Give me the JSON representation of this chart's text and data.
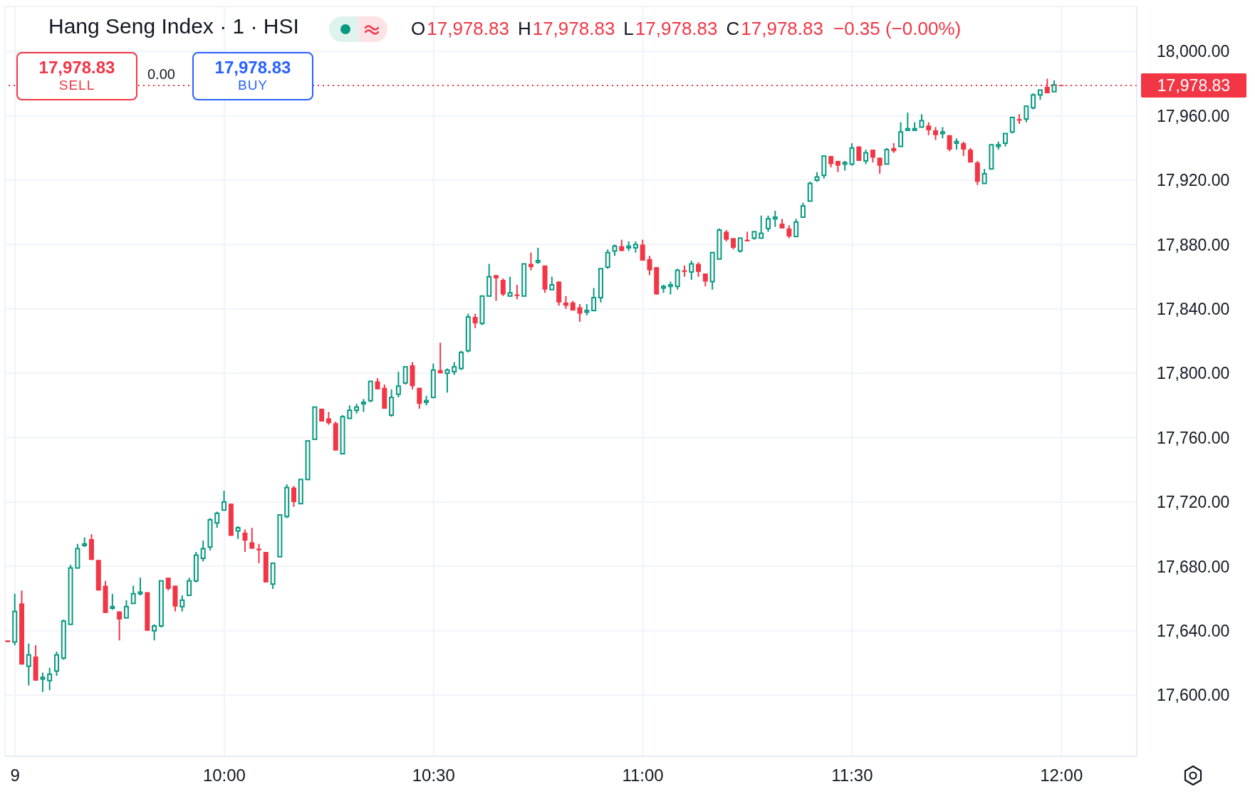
{
  "chart_data": {
    "type": "candlestick",
    "title": "Hang Seng Index · 1 · HSI",
    "annotations": [
      "O",
      "17,978.83",
      "H",
      "17,978.83",
      "L",
      "17,978.83",
      "C",
      "17,978.83",
      "−0.35 (−0.00%)",
      "17,978.83",
      "SELL",
      "0.00",
      "17,978.83",
      "BUY"
    ],
    "x": [
      9.4833,
      9.5,
      9.5167,
      9.5333,
      9.55,
      9.5667,
      9.5833,
      9.6,
      9.6167,
      9.6333,
      9.65,
      9.6667,
      9.6833,
      9.7,
      9.7167,
      9.7333,
      9.75,
      9.7667,
      9.7833,
      9.8,
      9.8167,
      9.8333,
      9.85,
      9.8667,
      9.8833,
      9.9,
      9.9167,
      9.9333,
      9.95,
      9.9667,
      9.9833,
      10,
      10.0167,
      10.0333,
      10.05,
      10.0667,
      10.0833,
      10.1,
      10.1167,
      10.1333,
      10.15,
      10.1667,
      10.1833,
      10.2,
      10.2167,
      10.2333,
      10.25,
      10.2667,
      10.2833,
      10.3,
      10.3167,
      10.3333,
      10.35,
      10.3667,
      10.3833,
      10.4,
      10.4167,
      10.4333,
      10.45,
      10.4667,
      10.4833,
      10.5,
      10.5167,
      10.5333,
      10.55,
      10.5667,
      10.5833,
      10.6,
      10.6167,
      10.6333,
      10.65,
      10.6667,
      10.6833,
      10.7,
      10.7167,
      10.7333,
      10.75,
      10.7667,
      10.7833,
      10.8,
      10.8167,
      10.8333,
      10.85,
      10.8667,
      10.8833,
      10.9,
      10.9167,
      10.9333,
      10.95,
      10.9667,
      10.9833,
      11,
      11.0167,
      11.0333,
      11.05,
      11.0667,
      11.0833,
      11.1,
      11.1167,
      11.1333,
      11.15,
      11.1667,
      11.1833,
      11.2,
      11.2167,
      11.2333,
      11.25,
      11.2667,
      11.2833,
      11.3,
      11.3167,
      11.3333,
      11.35,
      11.3667,
      11.3833,
      11.4,
      11.4167,
      11.4333,
      11.45,
      11.4667,
      11.4833,
      11.5,
      11.5167,
      11.5333,
      11.55,
      11.5667,
      11.5833,
      11.6,
      11.6167,
      11.6333,
      11.65,
      11.6667,
      11.6833,
      11.7,
      11.7167,
      11.7333,
      11.75,
      11.7667,
      11.7833,
      11.8,
      11.8167,
      11.8333,
      11.85,
      11.8667,
      11.8833,
      11.9,
      11.9167,
      11.9333,
      11.95,
      11.9667,
      11.9833,
      12
    ],
    "ohlc": [
      [
        17634,
        17634,
        17633,
        17633
      ],
      [
        17633,
        17663,
        17631,
        17652
      ],
      [
        17657,
        17665,
        17619,
        17619
      ],
      [
        17618,
        17632,
        17606,
        17625
      ],
      [
        17624,
        17631,
        17609,
        17609
      ],
      [
        17610,
        17614,
        17602,
        17611
      ],
      [
        17609,
        17617,
        17603,
        17613
      ],
      [
        17615,
        17627,
        17612,
        17625
      ],
      [
        17623,
        17647,
        17622,
        17646
      ],
      [
        17644,
        17681,
        17644,
        17679
      ],
      [
        17679,
        17694,
        17679,
        17691
      ],
      [
        17693,
        17698,
        17692,
        17694
      ],
      [
        17697,
        17700,
        17684,
        17684
      ],
      [
        17684,
        17684,
        17665,
        17665
      ],
      [
        17668,
        17671,
        17651,
        17651
      ],
      [
        17654,
        17663,
        17653,
        17655
      ],
      [
        17652,
        17652,
        17634,
        17647
      ],
      [
        17648,
        17659,
        17648,
        17655
      ],
      [
        17657,
        17668,
        17657,
        17663
      ],
      [
        17663,
        17673,
        17662,
        17664
      ],
      [
        17664,
        17664,
        17640,
        17640
      ],
      [
        17640,
        17644,
        17634,
        17643
      ],
      [
        17643,
        17671,
        17642,
        17671
      ],
      [
        17673,
        17673,
        17665,
        17666
      ],
      [
        17668,
        17668,
        17652,
        17655
      ],
      [
        17655,
        17662,
        17652,
        17659
      ],
      [
        17662,
        17673,
        17662,
        17671
      ],
      [
        17671,
        17689,
        17670,
        17687
      ],
      [
        17685,
        17696,
        17683,
        17691
      ],
      [
        17692,
        17710,
        17690,
        17709
      ],
      [
        17707,
        17714,
        17704,
        17713
      ],
      [
        17715,
        17727,
        17715,
        17720
      ],
      [
        17719,
        17719,
        17699,
        17699
      ],
      [
        17702,
        17705,
        17697,
        17704
      ],
      [
        17701,
        17703,
        17689,
        17696
      ],
      [
        17695,
        17704,
        17691,
        17691
      ],
      [
        17691,
        17694,
        17682,
        17690
      ],
      [
        17689,
        17689,
        17670,
        17670
      ],
      [
        17669,
        17682,
        17666,
        17682
      ],
      [
        17686,
        17712,
        17686,
        17712
      ],
      [
        17711,
        17731,
        17710,
        17729
      ],
      [
        17729,
        17730,
        17717,
        17720
      ],
      [
        17719,
        17734,
        17719,
        17734
      ],
      [
        17734,
        17758,
        17734,
        17758
      ],
      [
        17759,
        17779,
        17759,
        17779
      ],
      [
        17778,
        17778,
        17770,
        17770
      ],
      [
        17772,
        17776,
        17768,
        17769
      ],
      [
        17769,
        17770,
        17752,
        17752
      ],
      [
        17750,
        17774,
        17750,
        17773
      ],
      [
        17772,
        17780,
        17772,
        17777
      ],
      [
        17777,
        17781,
        17775,
        17779
      ],
      [
        17781,
        17784,
        17776,
        17782
      ],
      [
        17783,
        17795,
        17782,
        17795
      ],
      [
        17795,
        17797,
        17790,
        17790
      ],
      [
        17791,
        17793,
        17778,
        17778
      ],
      [
        17774,
        17790,
        17773,
        17785
      ],
      [
        17787,
        17801,
        17785,
        17792
      ],
      [
        17794,
        17804,
        17793,
        17804
      ],
      [
        17805,
        17807,
        17790,
        17792
      ],
      [
        17791,
        17791,
        17778,
        17781
      ],
      [
        17782,
        17786,
        17780,
        17783
      ],
      [
        17785,
        17806,
        17785,
        17802
      ],
      [
        17802,
        17819,
        17800,
        17800
      ],
      [
        17800,
        17803,
        17788,
        17802
      ],
      [
        17801,
        17807,
        17799,
        17804
      ],
      [
        17803,
        17814,
        17802,
        17813
      ],
      [
        17814,
        17837,
        17813,
        17835
      ],
      [
        17835,
        17837,
        17828,
        17831
      ],
      [
        17831,
        17848,
        17830,
        17848
      ],
      [
        17848,
        17868,
        17848,
        17860
      ],
      [
        17861,
        17861,
        17845,
        17859
      ],
      [
        17858,
        17859,
        17848,
        17849
      ],
      [
        17848,
        17860,
        17848,
        17850
      ],
      [
        17849,
        17855,
        17846,
        17848
      ],
      [
        17848,
        17868,
        17848,
        17868
      ],
      [
        17868,
        17875,
        17864,
        17866
      ],
      [
        17869,
        17878,
        17868,
        17870
      ],
      [
        17867,
        17867,
        17850,
        17852
      ],
      [
        17852,
        17860,
        17852,
        17855
      ],
      [
        17857,
        17857,
        17842,
        17844
      ],
      [
        17844,
        17848,
        17840,
        17842
      ],
      [
        17844,
        17845,
        17839,
        17839
      ],
      [
        17841,
        17843,
        17832,
        17837
      ],
      [
        17838,
        17843,
        17836,
        17839
      ],
      [
        17839,
        17853,
        17839,
        17847
      ],
      [
        17847,
        17865,
        17844,
        17865
      ],
      [
        17866,
        17877,
        17865,
        17875
      ],
      [
        17876,
        17880,
        17873,
        17879
      ],
      [
        17879,
        17883,
        17876,
        17876
      ],
      [
        17878,
        17882,
        17876,
        17879
      ],
      [
        17878,
        17882,
        17875,
        17880
      ],
      [
        17880,
        17883,
        17870,
        17870
      ],
      [
        17871,
        17873,
        17861,
        17864
      ],
      [
        17866,
        17866,
        17849,
        17849
      ],
      [
        17853,
        17855,
        17850,
        17854
      ],
      [
        17854,
        17857,
        17849,
        17855
      ],
      [
        17854,
        17865,
        17852,
        17864
      ],
      [
        17864,
        17867,
        17860,
        17863
      ],
      [
        17863,
        17870,
        17858,
        17868
      ],
      [
        17868,
        17869,
        17860,
        17863
      ],
      [
        17862,
        17862,
        17854,
        17857
      ],
      [
        17857,
        17875,
        17852,
        17875
      ],
      [
        17871,
        17890,
        17871,
        17889
      ],
      [
        17888,
        17889,
        17882,
        17883
      ],
      [
        17884,
        17884,
        17877,
        17878
      ],
      [
        17876,
        17884,
        17875,
        17884
      ],
      [
        17883,
        17888,
        17882,
        17882
      ],
      [
        17884,
        17888,
        17883,
        17888
      ],
      [
        17884,
        17898,
        17884,
        17887
      ],
      [
        17890,
        17898,
        17888,
        17896
      ],
      [
        17896,
        17901,
        17891,
        17897
      ],
      [
        17893,
        17896,
        17890,
        17890
      ],
      [
        17890,
        17892,
        17884,
        17885
      ],
      [
        17885,
        17896,
        17885,
        17894
      ],
      [
        17897,
        17906,
        17897,
        17904
      ],
      [
        17907,
        17919,
        17907,
        17918
      ],
      [
        17920,
        17925,
        17919,
        17922
      ],
      [
        17923,
        17935,
        17921,
        17935
      ],
      [
        17935,
        17935,
        17928,
        17930
      ],
      [
        17932,
        17932,
        17925,
        17929
      ],
      [
        17930,
        17932,
        17926,
        17931
      ],
      [
        17930,
        17943,
        17929,
        17940
      ],
      [
        17941,
        17941,
        17932,
        17932
      ],
      [
        17932,
        17939,
        17930,
        17937
      ],
      [
        17939,
        17939,
        17931,
        17934
      ],
      [
        17934,
        17934,
        17924,
        17929
      ],
      [
        17930,
        17940,
        17930,
        17939
      ],
      [
        17940,
        17943,
        17937,
        17938
      ],
      [
        17941,
        17956,
        17941,
        17950
      ],
      [
        17951,
        17962,
        17951,
        17952
      ],
      [
        17951,
        17956,
        17951,
        17952
      ],
      [
        17953,
        17961,
        17953,
        17957
      ],
      [
        17954,
        17956,
        17948,
        17951
      ],
      [
        17951,
        17953,
        17945,
        17948
      ],
      [
        17949,
        17953,
        17946,
        17950
      ],
      [
        17948,
        17948,
        17938,
        17939
      ],
      [
        17943,
        17946,
        17939,
        17944
      ],
      [
        17943,
        17944,
        17935,
        17939
      ],
      [
        17939,
        17940,
        17931,
        17931
      ],
      [
        17931,
        17932,
        17917,
        17919
      ],
      [
        17918,
        17927,
        17918,
        17924
      ],
      [
        17927,
        17942,
        17927,
        17942
      ],
      [
        17941,
        17944,
        17939,
        17942
      ],
      [
        17943,
        17949,
        17941,
        17949
      ],
      [
        17950,
        17959,
        17949,
        17959
      ],
      [
        17958,
        17961,
        17955,
        17957
      ],
      [
        17958,
        17966,
        17956,
        17966
      ],
      [
        17965,
        17974,
        17964,
        17973
      ],
      [
        17973,
        17976,
        17970,
        17976
      ],
      [
        17978,
        17983,
        17974,
        17974
      ],
      [
        17975,
        17982,
        17975,
        17979.18
      ],
      [
        17978.83,
        17978.83,
        17978.83,
        17978.83
      ]
    ],
    "colors": [
      "#f23645",
      "#089981",
      "#f23645",
      "#089981",
      "#f23645",
      "#089981",
      "#089981",
      "#089981",
      "#089981",
      "#089981",
      "#089981",
      "#089981",
      "#f23645",
      "#f23645",
      "#f23645",
      "#089981",
      "#f23645",
      "#089981",
      "#089981",
      "#089981",
      "#f23645",
      "#089981",
      "#089981",
      "#f23645",
      "#f23645",
      "#089981",
      "#089981",
      "#089981",
      "#089981",
      "#089981",
      "#089981",
      "#089981",
      "#f23645",
      "#089981",
      "#f23645",
      "#f23645",
      "#f23645",
      "#f23645",
      "#089981",
      "#089981",
      "#089981",
      "#f23645",
      "#089981",
      "#089981",
      "#089981",
      "#f23645",
      "#f23645",
      "#f23645",
      "#089981",
      "#089981",
      "#089981",
      "#089981",
      "#089981",
      "#f23645",
      "#f23645",
      "#089981",
      "#089981",
      "#089981",
      "#f23645",
      "#f23645",
      "#089981",
      "#089981",
      "#f23645",
      "#089981",
      "#089981",
      "#089981",
      "#089981",
      "#f23645",
      "#089981",
      "#089981",
      "#f23645",
      "#f23645",
      "#089981",
      "#f23645",
      "#089981",
      "#f23645",
      "#089981",
      "#f23645",
      "#089981",
      "#f23645",
      "#f23645",
      "#f23645",
      "#f23645",
      "#089981",
      "#089981",
      "#089981",
      "#089981",
      "#089981",
      "#f23645",
      "#089981",
      "#089981",
      "#f23645",
      "#f23645",
      "#f23645",
      "#089981",
      "#089981",
      "#089981",
      "#f23645",
      "#089981",
      "#f23645",
      "#f23645",
      "#089981",
      "#089981",
      "#f23645",
      "#f23645",
      "#089981",
      "#f23645",
      "#089981",
      "#089981",
      "#089981",
      "#089981",
      "#f23645",
      "#f23645",
      "#089981",
      "#089981",
      "#089981",
      "#089981",
      "#089981",
      "#f23645",
      "#f23645",
      "#089981",
      "#089981",
      "#f23645",
      "#089981",
      "#f23645",
      "#f23645",
      "#089981",
      "#f23645",
      "#089981",
      "#089981",
      "#089981",
      "#089981",
      "#f23645",
      "#f23645",
      "#089981",
      "#f23645",
      "#089981",
      "#f23645",
      "#f23645",
      "#f23645",
      "#089981",
      "#089981",
      "#089981",
      "#089981",
      "#089981",
      "#f23645",
      "#089981",
      "#089981",
      "#089981",
      "#f23645",
      "#089981",
      "#f23645"
    ],
    "xlim": [
      9.476,
      12.18
    ],
    "xticks": [
      {
        "value": 9.5,
        "label": "9"
      },
      {
        "value": 10,
        "label": "10:00"
      },
      {
        "value": 10.5,
        "label": "10:30"
      },
      {
        "value": 11,
        "label": "11:00"
      },
      {
        "value": 11.5,
        "label": "11:30"
      },
      {
        "value": 12,
        "label": "12:00"
      }
    ],
    "ylim": [
      17562,
      18028
    ],
    "yticks": [
      {
        "value": 17600,
        "label": "17,600.00"
      },
      {
        "value": 17640,
        "label": "17,640.00"
      },
      {
        "value": 17680,
        "label": "17,680.00"
      },
      {
        "value": 17720,
        "label": "17,720.00"
      },
      {
        "value": 17760,
        "label": "17,760.00"
      },
      {
        "value": 17800,
        "label": "17,800.00"
      },
      {
        "value": 17840,
        "label": "17,840.00"
      },
      {
        "value": 17880,
        "label": "17,880.00"
      },
      {
        "value": 17920,
        "label": "17,920.00"
      },
      {
        "value": 17960,
        "label": "17,960.00"
      },
      {
        "value": 18000,
        "label": "18,000.00"
      }
    ],
    "ref_lines": [
      {
        "axis": "y",
        "value": 17978.83,
        "label": "17,978.83",
        "color": "#f23645",
        "line_style": "dotted"
      }
    ],
    "grid": true
  }
}
